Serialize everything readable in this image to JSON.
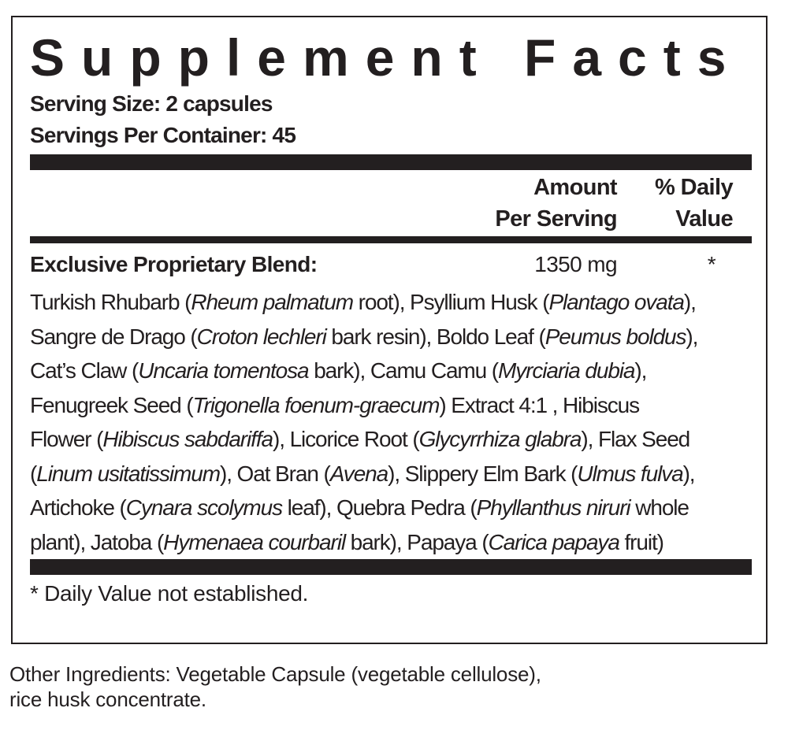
{
  "title": "Supplement Facts",
  "serving_size": "Serving Size: 2 capsules",
  "servings_per_container": "Servings Per Container: 45",
  "header": {
    "amount_line1": "Amount",
    "amount_line2": "Per Serving",
    "dv_line1": "% Daily",
    "dv_line2": "Value"
  },
  "blend": {
    "name": "Exclusive Proprietary Blend:",
    "amount": "1350 mg",
    "dv": "*"
  },
  "ingredient_lines": [
    [
      {
        "t": "Turkish Rhubarb ("
      },
      {
        "t": "Rheum palmatum",
        "i": true
      },
      {
        "t": " root), Psyllium Husk ("
      },
      {
        "t": "Plantago ovata",
        "i": true
      },
      {
        "t": "),"
      }
    ],
    [
      {
        "t": "Sangre de Drago ("
      },
      {
        "t": "Croton lechleri",
        "i": true
      },
      {
        "t": " bark resin), Boldo Leaf ("
      },
      {
        "t": "Peumus boldus",
        "i": true
      },
      {
        "t": "),"
      }
    ],
    [
      {
        "t": "Cat’s Claw ("
      },
      {
        "t": "Uncaria tomentosa",
        "i": true
      },
      {
        "t": " bark), Camu Camu ("
      },
      {
        "t": "Myrciaria dubia",
        "i": true
      },
      {
        "t": "),"
      }
    ],
    [
      {
        "t": "Fenugreek Seed ("
      },
      {
        "t": "Trigonella foenum-graecum",
        "i": true
      },
      {
        "t": ") Extract 4:1 , Hibiscus"
      }
    ],
    [
      {
        "t": "Flower ("
      },
      {
        "t": "Hibiscus sabdariffa",
        "i": true
      },
      {
        "t": "), Licorice Root ("
      },
      {
        "t": "Glycyrrhiza glabra",
        "i": true
      },
      {
        "t": "), Flax Seed"
      }
    ],
    [
      {
        "t": "("
      },
      {
        "t": "Linum usitatissimum",
        "i": true
      },
      {
        "t": "), Oat Bran ("
      },
      {
        "t": "Avena",
        "i": true
      },
      {
        "t": "),  Slippery Elm Bark ("
      },
      {
        "t": "Ulmus fulva",
        "i": true
      },
      {
        "t": "),"
      }
    ],
    [
      {
        "t": "Artichoke ("
      },
      {
        "t": "Cynara scolymus",
        "i": true
      },
      {
        "t": " leaf), Quebra Pedra ("
      },
      {
        "t": "Phyllanthus niruri",
        "i": true
      },
      {
        "t": " whole"
      }
    ],
    [
      {
        "t": "plant), Jatoba ("
      },
      {
        "t": "Hymenaea courbaril",
        "i": true
      },
      {
        "t": " bark), Papaya ("
      },
      {
        "t": "Carica papaya",
        "i": true
      },
      {
        "t": " fruit)"
      }
    ]
  ],
  "footnote": "* Daily Value not established.",
  "other_ingredients": {
    "line1": "Other Ingredients: Vegetable Capsule (vegetable cellulose),",
    "line2": "rice husk concentrate."
  }
}
